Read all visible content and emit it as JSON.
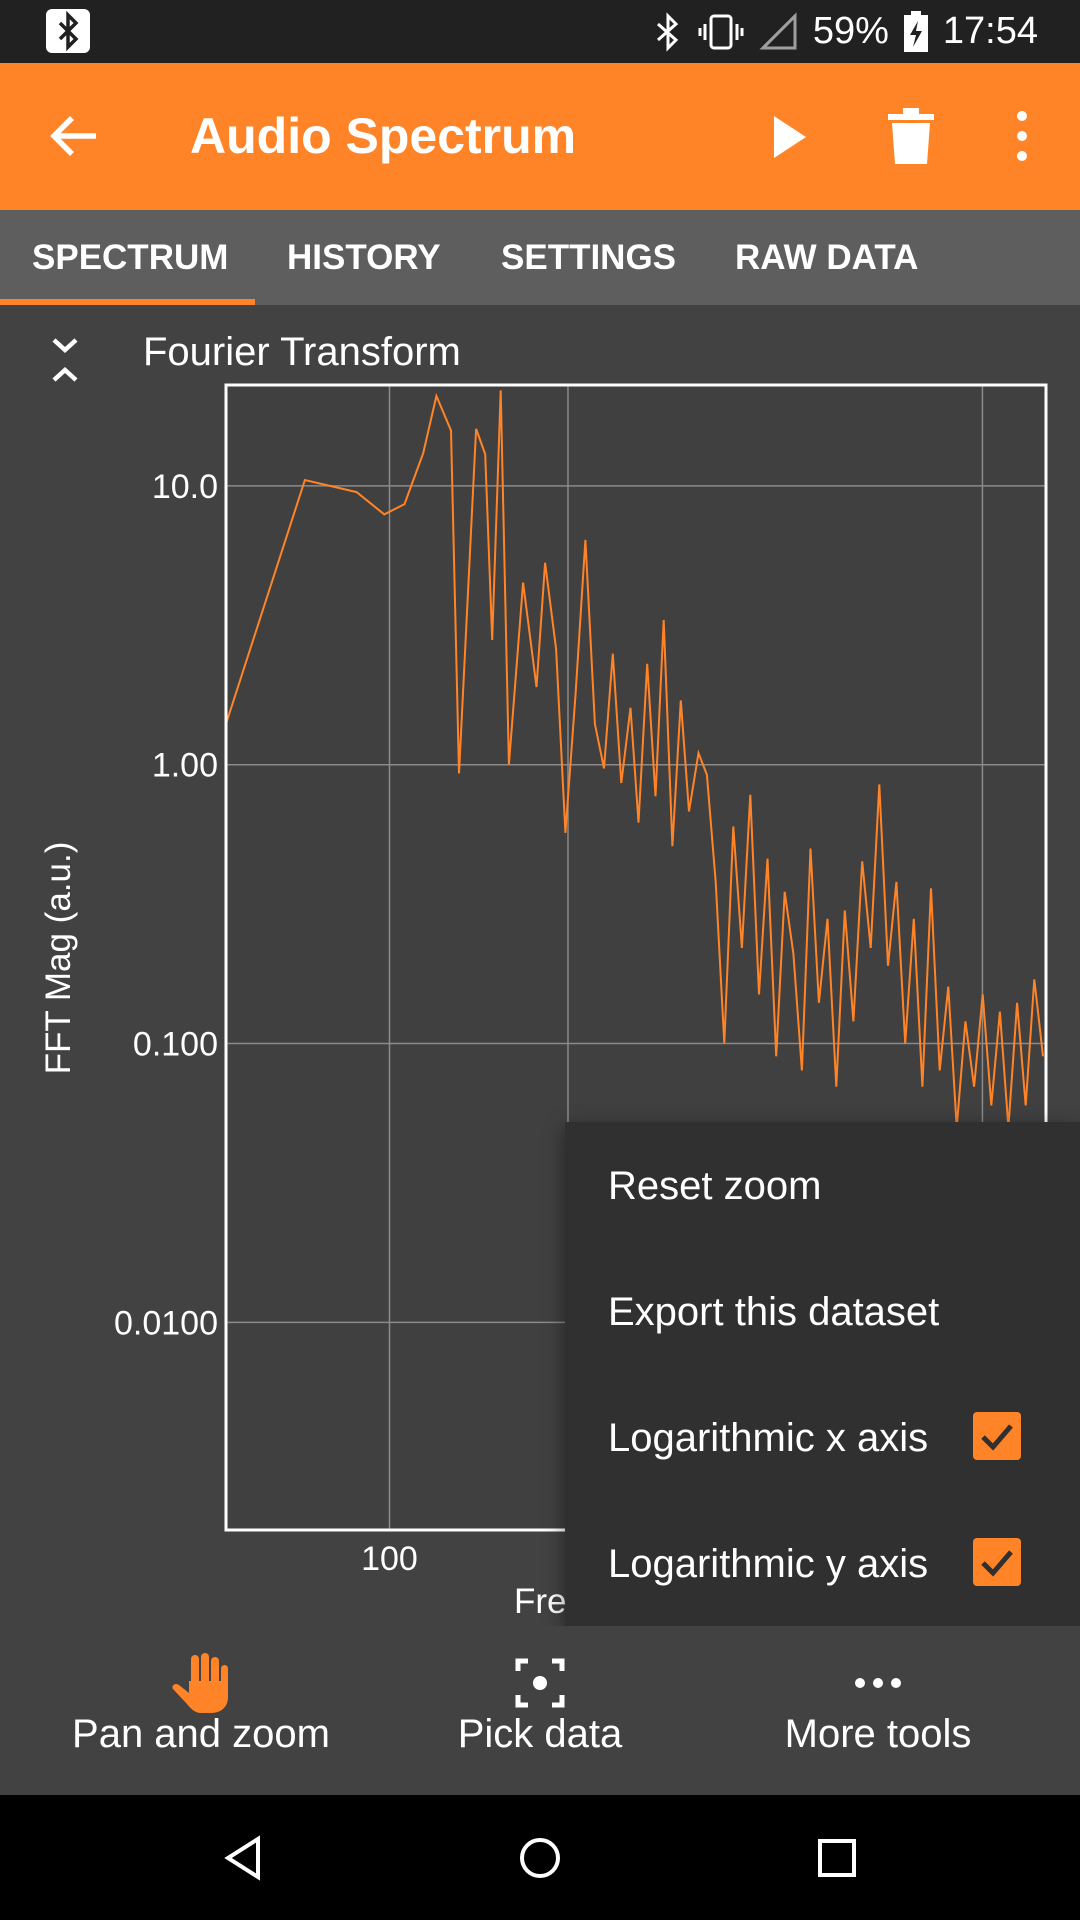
{
  "status_bar": {
    "battery": "59%",
    "time": "17:54"
  },
  "app_bar": {
    "title": "Audio Spectrum"
  },
  "tabs": [
    {
      "label": "SPECTRUM",
      "selected": true
    },
    {
      "label": "HISTORY",
      "selected": false
    },
    {
      "label": "SETTINGS",
      "selected": false
    },
    {
      "label": "RAW DATA",
      "selected": false
    }
  ],
  "graph": {
    "title": "Fourier Transform"
  },
  "chart_data": {
    "type": "line",
    "ylabel": "FFT Mag (a.u.)",
    "xlabel_visible": "Fre",
    "x_scale": "log",
    "y_scale": "log",
    "y_ticks": [
      "10.0",
      "1.00",
      "0.100",
      "0.0100"
    ],
    "x_ticks": [
      "100"
    ],
    "xlim": [
      53,
      1280
    ],
    "ylim": [
      0.0018,
      23
    ],
    "grid": true,
    "line_color": "#ff8427",
    "series": [
      {
        "x": [
          53,
          72,
          88,
          98,
          106,
          114,
          120,
          127,
          131,
          140,
          145,
          149,
          154,
          159,
          168,
          177,
          183,
          191,
          198,
          206,
          214,
          222,
          230,
          238,
          246,
          255,
          263,
          272,
          281,
          290,
          300,
          310,
          320,
          332,
          343,
          355,
          367,
          380,
          393,
          406,
          420,
          434,
          449,
          464,
          480,
          496,
          513,
          530,
          548,
          567,
          586,
          606,
          627,
          648,
          670,
          693,
          716,
          741,
          766,
          792,
          819,
          847,
          876,
          905,
          936,
          968,
          1001,
          1035,
          1070,
          1106,
          1144,
          1183,
          1223,
          1265
        ],
        "y": [
          1.4,
          10.5,
          9.5,
          7.9,
          8.6,
          13.1,
          21.0,
          15.8,
          0.93,
          16.0,
          13.0,
          2.8,
          22.0,
          1.0,
          4.5,
          1.9,
          5.3,
          2.6,
          0.57,
          1.8,
          6.4,
          1.4,
          0.97,
          2.5,
          0.86,
          1.6,
          0.62,
          2.3,
          0.77,
          3.3,
          0.51,
          1.7,
          0.68,
          1.1,
          0.92,
          0.38,
          0.1,
          0.6,
          0.22,
          0.78,
          0.15,
          0.46,
          0.09,
          0.35,
          0.21,
          0.08,
          0.5,
          0.14,
          0.28,
          0.07,
          0.3,
          0.12,
          0.45,
          0.22,
          0.85,
          0.19,
          0.38,
          0.1,
          0.28,
          0.07,
          0.36,
          0.08,
          0.16,
          0.05,
          0.12,
          0.07,
          0.15,
          0.06,
          0.13,
          0.05,
          0.14,
          0.06,
          0.17,
          0.09
        ]
      }
    ]
  },
  "overflow_menu": {
    "items": [
      {
        "label": "Reset zoom"
      },
      {
        "label": "Export this dataset"
      },
      {
        "label": "Logarithmic x axis",
        "checked": true
      },
      {
        "label": "Logarithmic y axis",
        "checked": true
      }
    ]
  },
  "toolbar": {
    "items": [
      {
        "label": "Pan and zoom",
        "icon": "hand-icon",
        "active": true
      },
      {
        "label": "Pick data",
        "icon": "target-icon",
        "active": false
      },
      {
        "label": "More tools",
        "icon": "more-horizontal-icon",
        "active": false
      }
    ]
  }
}
